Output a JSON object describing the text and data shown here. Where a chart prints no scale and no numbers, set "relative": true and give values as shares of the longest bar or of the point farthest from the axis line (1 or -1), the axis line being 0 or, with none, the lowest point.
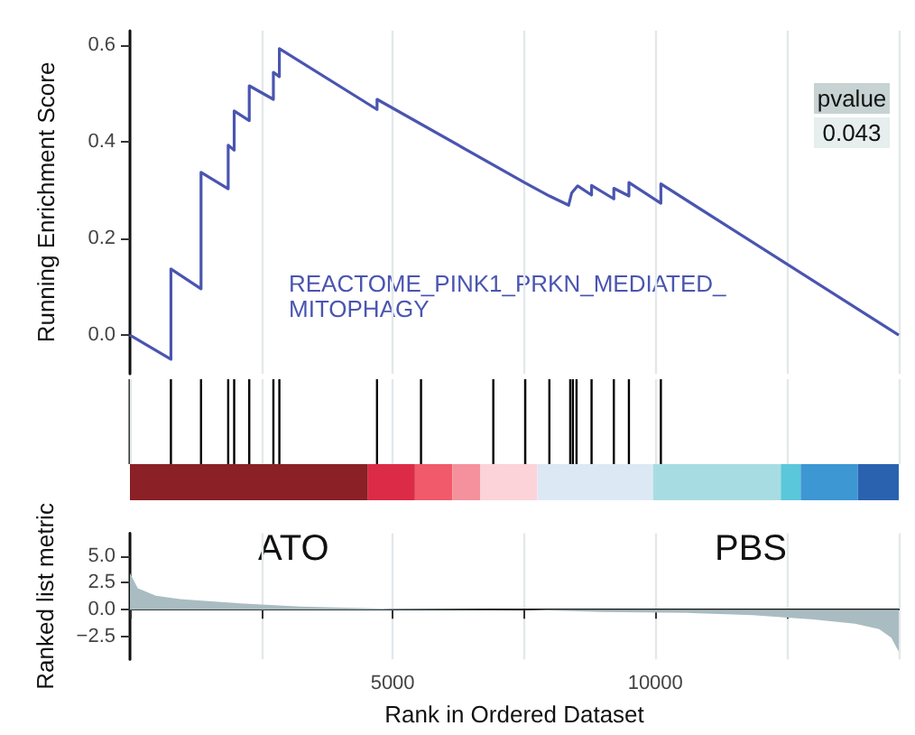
{
  "chart_data": [
    {
      "type": "line",
      "ylabel": "Running Enrichment Score",
      "xlim": [
        0,
        14633
      ],
      "ylim": [
        -0.08,
        0.63
      ],
      "xticks": [
        {
          "value": 2500,
          "label": null
        },
        {
          "value": 5000,
          "label": null
        },
        {
          "value": 7500,
          "label": null
        },
        {
          "value": 10000,
          "label": null
        },
        {
          "value": 12500,
          "label": null
        }
      ],
      "yticks": [
        {
          "value": 0,
          "label": "0.0"
        },
        {
          "value": 0.2,
          "label": "0.2"
        },
        {
          "value": 0.4,
          "label": "0.4"
        },
        {
          "value": 0.6,
          "label": "0.6"
        }
      ],
      "grid": "x",
      "tick_labels": "y",
      "marker": "none",
      "line_style": "solid",
      "annotations": [
        "REACTOME_PINK1_PRKN_MEDIATED_\nMITOPHAGY",
        "pvalue",
        "0.043"
      ],
      "series": [
        {
          "color": "#4a55b0",
          "x": [
            0,
            780,
            780,
            1353,
            1353,
            1870,
            1870,
            1984,
            1984,
            2271,
            2271,
            2730,
            2730,
            2844,
            2844,
            4703,
            4703,
            7524,
            7983,
            8350,
            8407,
            8522,
            8786,
            8786,
            9210,
            9210,
            9497,
            9497,
            10105,
            10105,
            14633
          ],
          "values": [
            0,
            -0.05,
            0.137,
            0.096,
            0.337,
            0.303,
            0.393,
            0.383,
            0.464,
            0.444,
            0.516,
            0.488,
            0.544,
            0.535,
            0.593,
            0.467,
            0.488,
            0.315,
            0.288,
            0.269,
            0.294,
            0.309,
            0.29,
            0.31,
            0.282,
            0.304,
            0.288,
            0.316,
            0.273,
            0.313,
            0
          ]
        }
      ]
    },
    {
      "type": "bar",
      "relative": true,
      "xlim": [
        0,
        14633
      ],
      "tick_labels": false,
      "grid": "x",
      "xticks": [
        {
          "value": 2500,
          "label": null
        },
        {
          "value": 5000,
          "label": null
        },
        {
          "value": 7500,
          "label": null
        },
        {
          "value": 10000,
          "label": null
        },
        {
          "value": 12500,
          "label": null
        }
      ],
      "series": [
        {
          "color": "#000000",
          "x": [
            780,
            1353,
            1870,
            1984,
            2271,
            2730,
            2844,
            4703,
            5540,
            6916,
            7524,
            7983,
            8380,
            8430,
            8500,
            8786,
            9210,
            9497,
            10105
          ],
          "values": [
            1,
            1,
            1,
            1,
            1,
            1,
            1,
            1,
            1,
            1,
            1,
            1,
            1,
            1,
            1,
            1,
            1,
            1,
            1
          ]
        }
      ]
    },
    {
      "type": "bar",
      "orientation": "horizontal",
      "stacked": true,
      "xlim": [
        0,
        14633
      ],
      "tick_labels": false,
      "categories": [
        null
      ],
      "series": [
        {
          "color": "#8b2027",
          "values": [
            4530
          ]
        },
        {
          "color": "#dc2b47",
          "values": [
            895
          ]
        },
        {
          "color": "#f05a6a",
          "values": [
            711
          ]
        },
        {
          "color": "#f4919c",
          "values": [
            528
          ]
        },
        {
          "color": "#fbd3d8",
          "values": [
            1090
          ]
        },
        {
          "color": "#dde8f5",
          "values": [
            2202
          ]
        },
        {
          "color": "#a8dce3",
          "values": [
            2432
          ]
        },
        {
          "color": "#5bc7da",
          "values": [
            378
          ]
        },
        {
          "color": "#3c97d3",
          "values": [
            1090
          ]
        },
        {
          "color": "#2a62b0",
          "values": [
            777
          ]
        }
      ]
    },
    {
      "type": "area",
      "ylabel": "Ranked list metric",
      "xlabel": "Rank in Ordered Dataset",
      "xlim": [
        0,
        14633
      ],
      "ylim": [
        -4.6,
        7.1
      ],
      "xticks": [
        {
          "value": 2500,
          "label": null
        },
        5000,
        {
          "value": 7500,
          "label": null
        },
        10000,
        {
          "value": 12500,
          "label": null
        }
      ],
      "yticks": [
        {
          "value": -2.5,
          "label": "−2.5"
        },
        {
          "value": 0,
          "label": "0.0"
        },
        {
          "value": 2.5,
          "label": "2.5"
        },
        {
          "value": 5,
          "label": "5.0"
        }
      ],
      "grid": "x",
      "annotations": [
        "ATO",
        "PBS"
      ],
      "series": [
        {
          "color": "#a9bcc1",
          "x": [
            0,
            150,
            493,
            952,
            2100,
            3246,
            4966,
            7490,
            8981,
            10700,
            11850,
            13000,
            13800,
            14260,
            14490,
            14633
          ],
          "values": [
            3.4,
            2.0,
            1.3,
            1.0,
            0.6,
            0.3,
            0.1,
            0,
            -0.2,
            -0.3,
            -0.5,
            -0.9,
            -1.3,
            -1.8,
            -2.6,
            -3.9
          ]
        }
      ]
    }
  ]
}
